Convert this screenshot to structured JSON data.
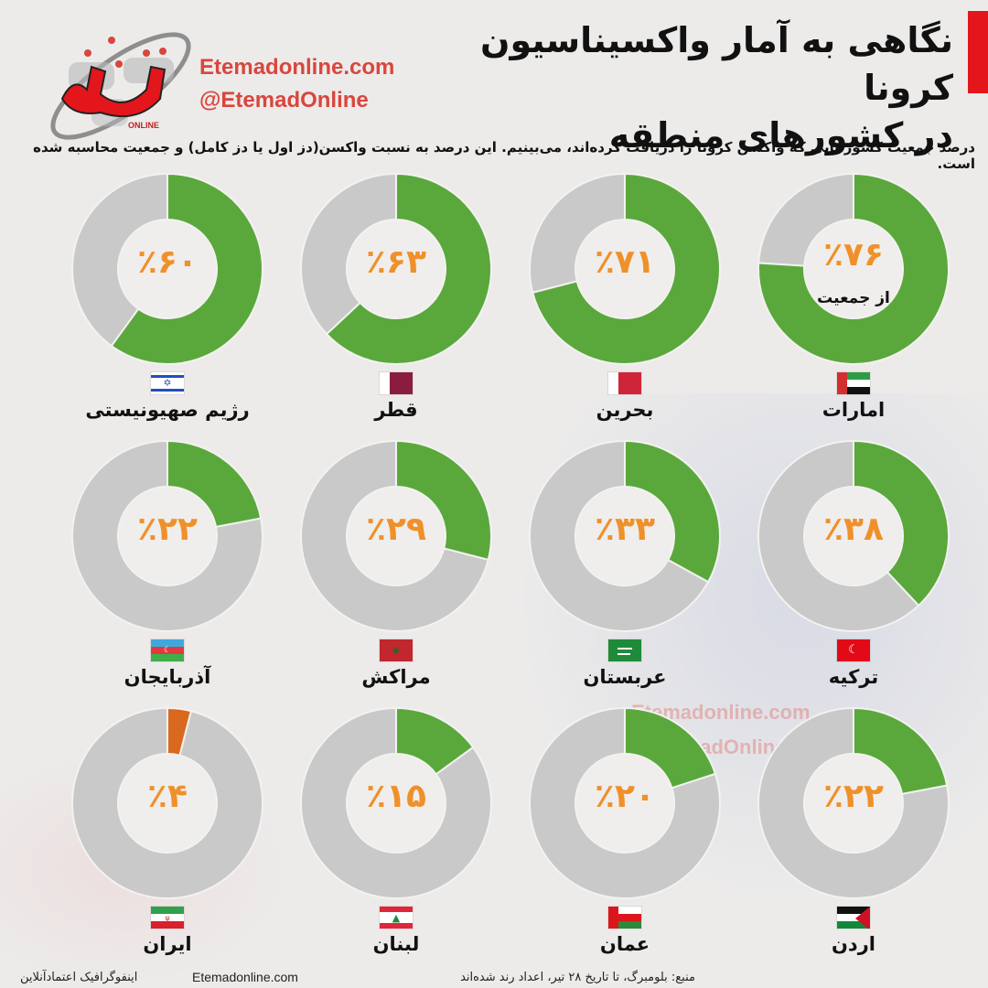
{
  "header": {
    "title_line1": "نگاهی به آمار واکسیناسیون کرونا",
    "title_line2": "در کشورهای منطقه",
    "logo_caption": "ONLINE",
    "site_url": "Etemadonline.com",
    "site_handle": "@EtemadOnline",
    "subtitle": "درصد جمعیت کشورهایی که واکسن کرونا را دریافت کرده‌اند، می‌بینیم. این درصد به نسبت واکسن(دز اول یا دز کامل) و جمعیت محاسبه شده است."
  },
  "colors": {
    "vaccinated": "#5aa83c",
    "iran_vaccinated": "#d9691e",
    "remaining": "#c9c9c9",
    "percent_text": "#f0902a",
    "brand_red": "#e3161c",
    "link_red": "#d9463d"
  },
  "countries": [
    {
      "name": "امارات",
      "percent_label": "٪۷۶",
      "sub_label": "از جمعیت",
      "value": 76,
      "flag": "uae"
    },
    {
      "name": "بحرین",
      "percent_label": "٪۷۱",
      "value": 71,
      "flag": "bahrain"
    },
    {
      "name": "قطر",
      "percent_label": "٪۶۳",
      "value": 63,
      "flag": "qatar"
    },
    {
      "name": "رژیم صهیونیستی",
      "percent_label": "٪۶۰",
      "value": 60,
      "flag": "israel"
    },
    {
      "name": "ترکیه",
      "percent_label": "٪۳۸",
      "value": 38,
      "flag": "turkey"
    },
    {
      "name": "عربستان",
      "percent_label": "٪۳۳",
      "value": 33,
      "flag": "saudi"
    },
    {
      "name": "مراکش",
      "percent_label": "٪۲۹",
      "value": 29,
      "flag": "morocco"
    },
    {
      "name": "آذربایجان",
      "percent_label": "٪۲۲",
      "value": 22,
      "flag": "azerbaijan"
    },
    {
      "name": "اردن",
      "percent_label": "٪۲۲",
      "value": 22,
      "flag": "jordan"
    },
    {
      "name": "عمان",
      "percent_label": "٪۲۰",
      "value": 20,
      "flag": "oman"
    },
    {
      "name": "لبنان",
      "percent_label": "٪۱۵",
      "value": 15,
      "flag": "lebanon"
    },
    {
      "name": "ایران",
      "percent_label": "٪۴",
      "value": 4,
      "flag": "iran"
    }
  ],
  "footer": {
    "source": "منبع: بلومبرگ، تا تاریخ ۲۸ تیر، اعداد رند شده‌اند",
    "site": "Etemadonline.com",
    "credit": "اینفوگرافیک اعتمادآنلاین"
  },
  "watermark": {
    "url": "Etemadonline.com",
    "handle": "@EtemadOnline"
  },
  "chart_data": {
    "type": "pie",
    "subtype": "donut-small-multiples",
    "title": "نگاهی به آمار واکسیناسیون کرونا در کشورهای منطقه",
    "subtitle": "درصد جمعیت کشورهایی که واکسن کرونا را دریافت کرده‌اند",
    "unit": "% of population (first dose or full dose)",
    "categories": [
      "امارات",
      "بحرین",
      "قطر",
      "رژیم صهیونیستی",
      "ترکیه",
      "عربستان",
      "مراکش",
      "آذربایجان",
      "اردن",
      "عمان",
      "لبنان",
      "ایران"
    ],
    "categories_en": [
      "UAE",
      "Bahrain",
      "Qatar",
      "Israel",
      "Turkey",
      "Saudi Arabia",
      "Morocco",
      "Azerbaijan",
      "Jordan",
      "Oman",
      "Lebanon",
      "Iran"
    ],
    "series": [
      {
        "name": "vaccinated",
        "values": [
          76,
          71,
          63,
          60,
          38,
          33,
          29,
          22,
          22,
          20,
          15,
          4
        ]
      },
      {
        "name": "not vaccinated",
        "values": [
          24,
          29,
          37,
          40,
          62,
          67,
          71,
          78,
          78,
          80,
          85,
          96
        ]
      }
    ],
    "source": "منبع: بلومبرگ، تا تاریخ ۲۸ تیر، اعداد رند شده‌اند",
    "layout": {
      "grid": "4 columns x 3 rows, right-to-left",
      "legend": "none"
    }
  }
}
